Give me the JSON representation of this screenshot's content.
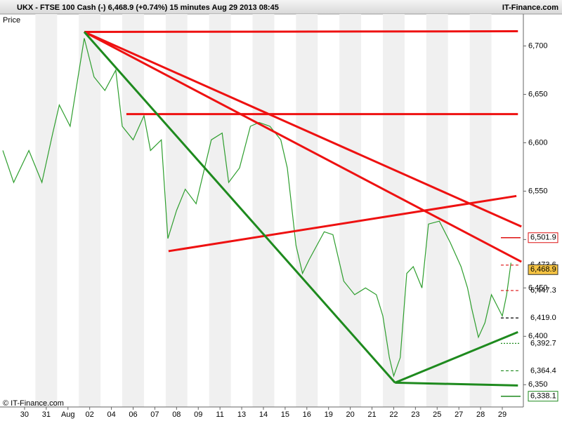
{
  "chart_data": {
    "type": "line",
    "title": "UKX - FTSE 100 Cash (-)    6,468.9 (+0.74%)    15 minutes   Aug 29 2013 08:45",
    "brand": "IT-Finance.com",
    "copyright": "© IT-Finance.com",
    "y_label": "Price",
    "xlim": [
      -1.13,
      22.97
    ],
    "ylim": [
      6327,
      6733
    ],
    "yticks": [
      {
        "value": 6350,
        "label": "6,350"
      },
      {
        "value": 6400,
        "label": "6,400"
      },
      {
        "value": 6450,
        "label": "6,450"
      },
      {
        "value": 6500,
        "label": "6,500"
      },
      {
        "value": 6550,
        "label": "6,550"
      },
      {
        "value": 6600,
        "label": "6,600"
      },
      {
        "value": 6650,
        "label": "6,650"
      },
      {
        "value": 6700,
        "label": "6,700"
      }
    ],
    "xticks": [
      {
        "value": 0,
        "label": "30"
      },
      {
        "value": 1,
        "label": "31"
      },
      {
        "value": 2,
        "label": "Aug"
      },
      {
        "value": 3,
        "label": "02"
      },
      {
        "value": 4,
        "label": "04"
      },
      {
        "value": 5,
        "label": "06"
      },
      {
        "value": 6,
        "label": "07"
      },
      {
        "value": 7,
        "label": "08"
      },
      {
        "value": 8,
        "label": "09"
      },
      {
        "value": 9,
        "label": "11"
      },
      {
        "value": 10,
        "label": "13"
      },
      {
        "value": 11,
        "label": "14"
      },
      {
        "value": 12,
        "label": "15"
      },
      {
        "value": 13,
        "label": "16"
      },
      {
        "value": 14,
        "label": "19"
      },
      {
        "value": 15,
        "label": "20"
      },
      {
        "value": 16,
        "label": "21"
      },
      {
        "value": 17,
        "label": "22"
      },
      {
        "value": 18,
        "label": "23"
      },
      {
        "value": 19,
        "label": "25"
      },
      {
        "value": 20,
        "label": "27"
      },
      {
        "value": 21,
        "label": "28"
      },
      {
        "value": 22,
        "label": "29"
      }
    ],
    "series": [
      {
        "color": "#2e9e2e",
        "x": [
          -1.0,
          -0.5,
          0.2,
          0.8,
          1.3,
          1.6,
          2.1,
          2.75,
          3.2,
          3.7,
          4.2,
          4.5,
          5.0,
          5.5,
          5.8,
          6.3,
          6.6,
          7.0,
          7.4,
          7.9,
          8.6,
          9.1,
          9.4,
          9.9,
          10.4,
          10.8,
          11.3,
          11.8,
          12.1,
          12.5,
          12.8,
          13.1,
          13.8,
          14.2,
          14.7,
          15.2,
          15.7,
          16.2,
          16.5,
          16.8,
          17.0,
          17.3,
          17.6,
          17.9,
          18.3,
          18.6,
          19.1,
          19.6,
          20.1,
          20.4,
          20.6,
          20.9,
          21.2,
          21.5,
          22.0,
          22.2,
          22.4
        ],
        "values": [
          6592,
          6559,
          6592,
          6559,
          6610,
          6639,
          6617,
          6708,
          6668,
          6654,
          6675,
          6617,
          6603,
          6628,
          6592,
          6603,
          6501,
          6530,
          6552,
          6537,
          6603,
          6610,
          6559,
          6574,
          6617,
          6621,
          6617,
          6603,
          6574,
          6494,
          6465,
          6479,
          6508,
          6505,
          6457,
          6443,
          6450,
          6443,
          6421,
          6378,
          6359,
          6378,
          6465,
          6472,
          6450,
          6516,
          6519,
          6497,
          6472,
          6450,
          6428,
          6399,
          6414,
          6443,
          6421,
          6443,
          6476
        ]
      }
    ],
    "trendlines": [
      {
        "color": "#ee1111",
        "x": [
          2.75,
          22.72
        ],
        "values": [
          6714.5,
          6715.2
        ]
      },
      {
        "color": "#ee1111",
        "x": [
          2.75,
          22.88
        ],
        "values": [
          6714.5,
          6513.4
        ]
      },
      {
        "color": "#ee1111",
        "x": [
          2.75,
          22.88
        ],
        "values": [
          6714.5,
          6477
        ]
      },
      {
        "color": "#ee1111",
        "x": [
          4.69,
          22.72
        ],
        "values": [
          6629.6,
          6629.6
        ]
      },
      {
        "color": "#ee1111",
        "x": [
          6.63,
          22.65
        ],
        "values": [
          6488,
          6545
        ]
      },
      {
        "color": "#1e8a1e",
        "x": [
          2.75,
          17.06
        ],
        "values": [
          6714.5,
          6352.1
        ]
      },
      {
        "color": "#1e8a1e",
        "x": [
          17.06,
          22.72
        ],
        "values": [
          6352.1,
          6404.4
        ]
      },
      {
        "color": "#1e8a1e",
        "x": [
          17.06,
          22.72
        ],
        "values": [
          6352.1,
          6349.2
        ]
      }
    ],
    "price_labels": [
      {
        "value": 6501.9,
        "label": "6,501.9",
        "color": "#dd1111",
        "style": "solid",
        "box": "border"
      },
      {
        "value": 6473.6,
        "label": "6,473.6",
        "color": "#dd1111",
        "style": "dashed",
        "box": "none"
      },
      {
        "value": 6468.9,
        "label": "6,468.9",
        "color": "#000000",
        "style": "none",
        "box": "#f5c342"
      },
      {
        "value": 6447.3,
        "label": "6,447.3",
        "color": "#dd1111",
        "style": "dashed",
        "box": "none"
      },
      {
        "value": 6419.0,
        "label": "6,419.0",
        "color": "#000000",
        "style": "dashed",
        "box": "none"
      },
      {
        "value": 6392.7,
        "label": "6,392.7",
        "color": "#1e8a1e",
        "style": "dotted",
        "box": "none"
      },
      {
        "value": 6364.4,
        "label": "6,364.4",
        "color": "#1e8a1e",
        "style": "dashed",
        "box": "none"
      },
      {
        "value": 6338.1,
        "label": "6,338.1",
        "color": "#1e8a1e",
        "style": "solid",
        "box": "border"
      }
    ]
  }
}
